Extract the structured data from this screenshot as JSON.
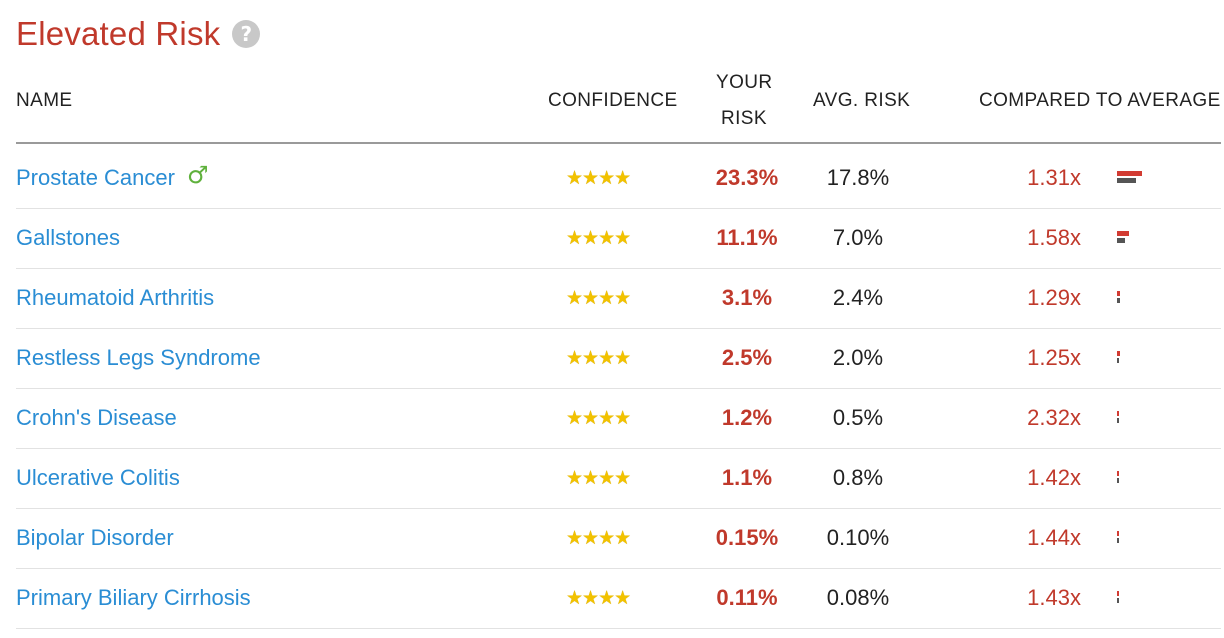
{
  "title": "Elevated Risk",
  "help_icon": "?",
  "colors": {
    "accent_red": "#c0392b",
    "link_blue": "#2a8dd4",
    "star_gold": "#f2c200",
    "male_green": "#5fb13c"
  },
  "columns": {
    "name": "NAME",
    "confidence": "CONFIDENCE",
    "your_risk_1": "YOUR",
    "your_risk_2": "RISK",
    "avg_risk": "AVG. RISK",
    "compared": "COMPARED TO AVERAGE"
  },
  "rows": [
    {
      "name": "Prostate Cancer",
      "male": "♂",
      "stars": "★★★★",
      "your_risk": "23.3%",
      "avg_risk": "17.8%",
      "compared": "1.31x",
      "your_value": 23.3,
      "avg_value": 17.8
    },
    {
      "name": "Gallstones",
      "stars": "★★★★",
      "your_risk": "11.1%",
      "avg_risk": "7.0%",
      "compared": "1.58x",
      "your_value": 11.1,
      "avg_value": 7.0
    },
    {
      "name": "Rheumatoid Arthritis",
      "stars": "★★★★",
      "your_risk": "3.1%",
      "avg_risk": "2.4%",
      "compared": "1.29x",
      "your_value": 3.1,
      "avg_value": 2.4
    },
    {
      "name": "Restless Legs Syndrome",
      "stars": "★★★★",
      "your_risk": "2.5%",
      "avg_risk": "2.0%",
      "compared": "1.25x",
      "your_value": 2.5,
      "avg_value": 2.0
    },
    {
      "name": "Crohn's Disease",
      "stars": "★★★★",
      "your_risk": "1.2%",
      "avg_risk": "0.5%",
      "compared": "2.32x",
      "your_value": 1.2,
      "avg_value": 0.5
    },
    {
      "name": "Ulcerative Colitis",
      "stars": "★★★★",
      "your_risk": "1.1%",
      "avg_risk": "0.8%",
      "compared": "1.42x",
      "your_value": 1.1,
      "avg_value": 0.8
    },
    {
      "name": "Bipolar Disorder",
      "stars": "★★★★",
      "your_risk": "0.15%",
      "avg_risk": "0.10%",
      "compared": "1.44x",
      "your_value": 0.15,
      "avg_value": 0.1
    },
    {
      "name": "Primary Biliary Cirrhosis",
      "stars": "★★★★",
      "your_risk": "0.11%",
      "avg_risk": "0.08%",
      "compared": "1.43x",
      "your_value": 0.11,
      "avg_value": 0.08
    }
  ]
}
